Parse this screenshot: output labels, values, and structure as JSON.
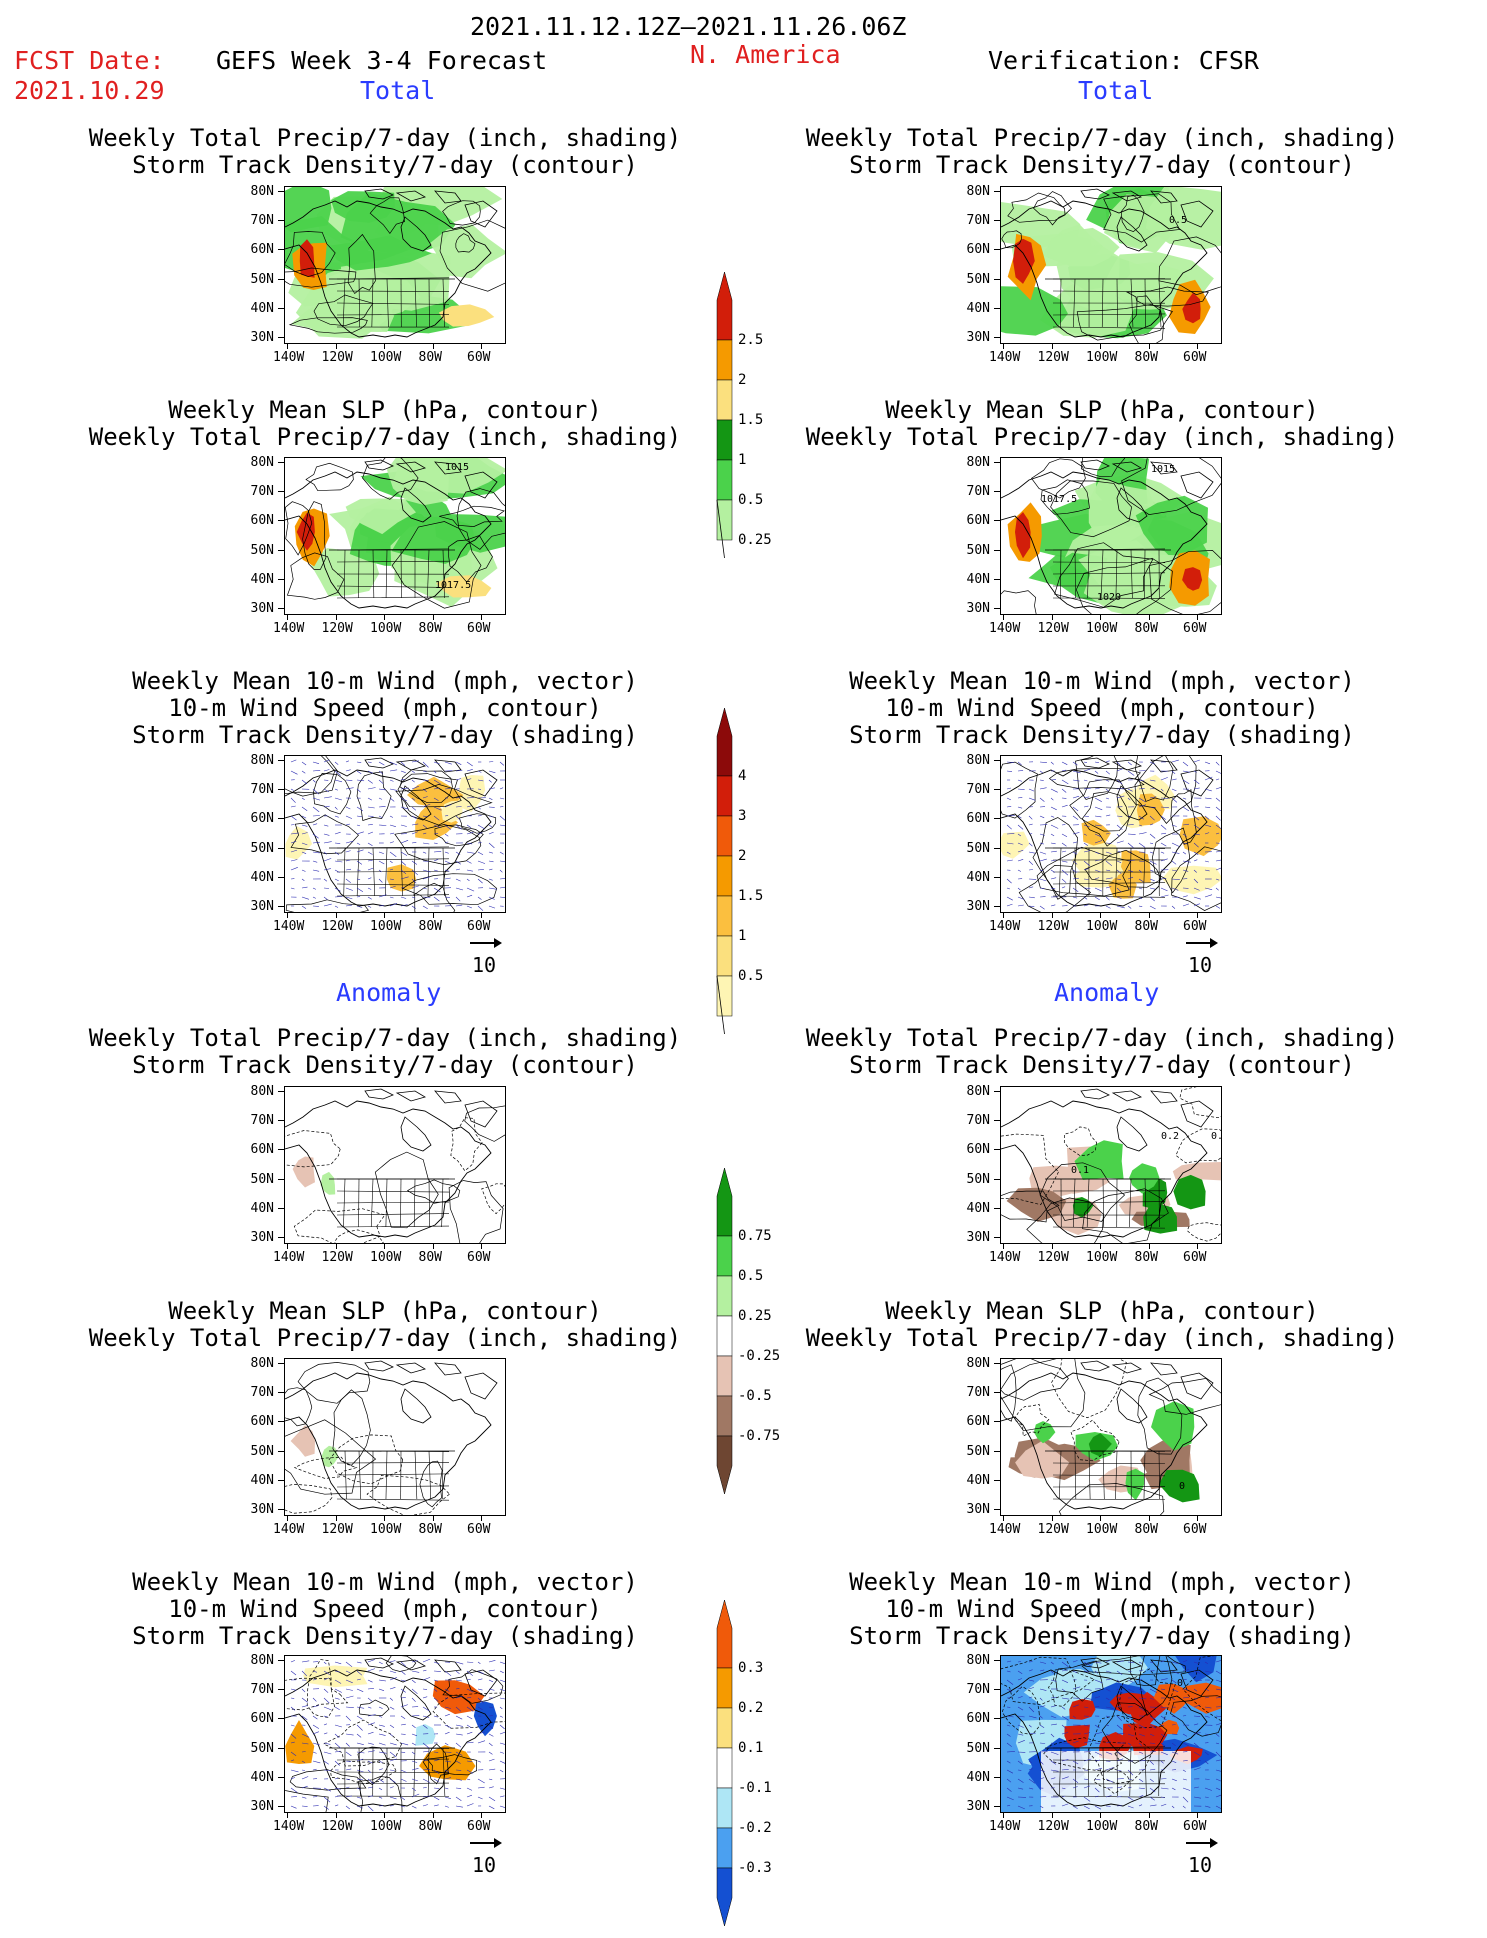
{
  "header": {
    "period": "2021.11.12.12Z–2021.11.26.06Z",
    "fcst_label": "FCST Date:",
    "fcst_date": "2021.10.29",
    "model": "GEFS Week 3-4 Forecast",
    "region": "N. America",
    "verification": "Verification: CFSR"
  },
  "sections": {
    "total_left": "Total",
    "total_right": "Total",
    "anomaly_left": "Anomaly",
    "anomaly_right": "Anomaly"
  },
  "titles": {
    "precip_storm": [
      "Weekly Total Precip/7-day (inch, shading)",
      "Storm Track Density/7-day (contour)"
    ],
    "slp_precip": [
      "Weekly Mean SLP (hPa, contour)",
      "Weekly Total Precip/7-day (inch, shading)"
    ],
    "wind_storm": [
      "Weekly Mean 10-m Wind (mph, vector)",
      "10-m Wind Speed (mph, contour)",
      "Storm Track Density/7-day (shading)"
    ]
  },
  "axes": {
    "lat_labels": [
      "80N",
      "70N",
      "60N",
      "50N",
      "40N",
      "30N"
    ],
    "lon_labels": [
      "140W",
      "120W",
      "100W",
      "80W",
      "60W"
    ]
  },
  "vector_ref": "10",
  "contour_labels": {
    "tl1": "0.5",
    "t2_left_1": "1015",
    "t2_left_2": "1017.5",
    "t2_right_1": "1015",
    "t2_right_2": "1017.5",
    "t2_right_3": "1020",
    "a1_right_1": "0.2",
    "a1_right_2": "0.3",
    "a1_right_3": "0.1",
    "a2_right_1": "0",
    "a3_right_1": "0"
  },
  "colorbars": {
    "total_precip": {
      "labels": [
        "2.5",
        "2",
        "1.5",
        "1",
        "0.5",
        "0.25"
      ],
      "colors": [
        "#d21e0a",
        "#f59a00",
        "#fbe07e",
        "#149614",
        "#4bd24b",
        "#b4f0a0"
      ]
    },
    "total_storm": {
      "labels": [
        "4",
        "3",
        "2",
        "1.5",
        "1",
        "0.5"
      ],
      "colors": [
        "#8c0a0a",
        "#d21e0a",
        "#f05a0a",
        "#f59a00",
        "#fbbf3f",
        "#fbe07e",
        "#fef5b4"
      ]
    },
    "anom_precip": {
      "labels": [
        "0.75",
        "0.5",
        "0.25",
        "-0.25",
        "-0.5",
        "-0.75"
      ],
      "colors": [
        "#149614",
        "#4bd24b",
        "#b4f0a0",
        "#ffffff",
        "#e6c3b4",
        "#a07864",
        "#6e4632"
      ]
    },
    "anom_storm": {
      "labels": [
        "0.3",
        "0.2",
        "0.1",
        "-0.1",
        "-0.2",
        "-0.3"
      ],
      "colors": [
        "#f05a0a",
        "#f59a00",
        "#fbe07e",
        "#ffffff",
        "#aee6f5",
        "#4ba0f0",
        "#1450d2"
      ]
    }
  }
}
